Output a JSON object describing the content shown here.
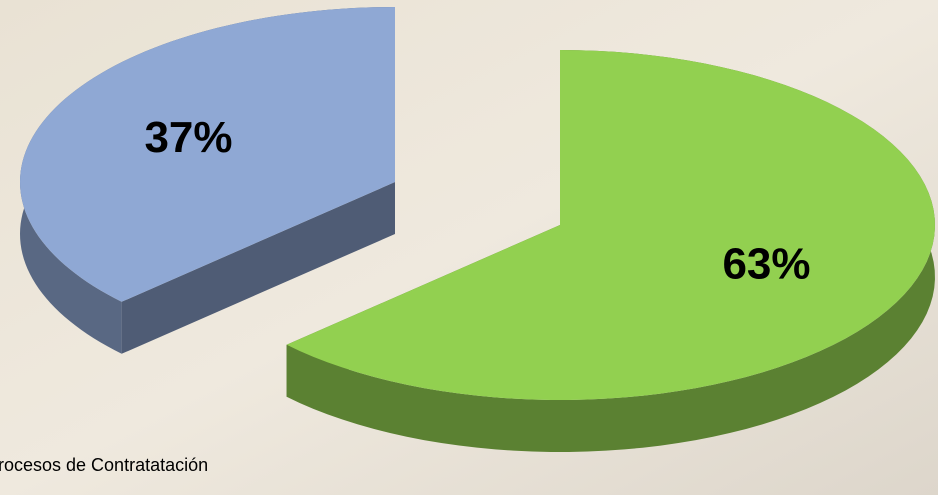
{
  "chart_data": {
    "type": "pie",
    "categories": [
      "rocesos de Contratatación",
      null
    ],
    "values": [
      37,
      63
    ],
    "value_labels": [
      "37%",
      "63%"
    ],
    "colors": [
      "#8fa8d4",
      "#92d050"
    ]
  }
}
